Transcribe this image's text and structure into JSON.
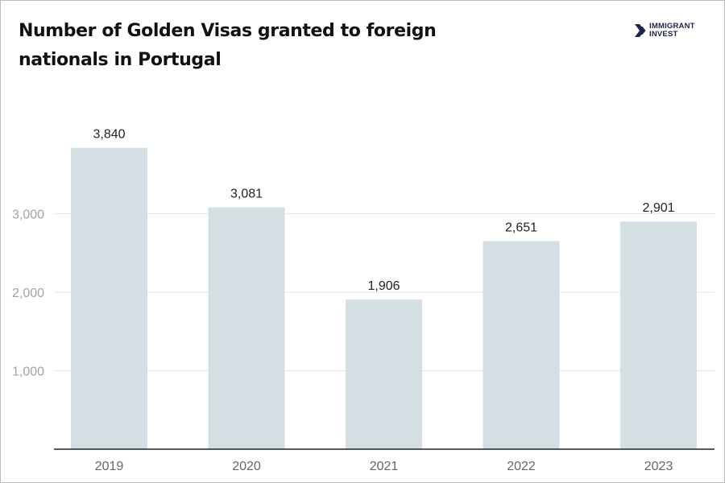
{
  "brand": {
    "line1": "IMMIGRANT",
    "line2": "INVEST",
    "color": "#1d2448",
    "icon": "chevron-arrows-icon"
  },
  "colors": {
    "bar": "#d4dfe3",
    "gridline": "#e4e4e4",
    "axis": "#222222"
  },
  "chart_data": {
    "type": "bar",
    "title": "Number of Golden Visas granted to foreign nationals in Portugal",
    "categories": [
      "2019",
      "2020",
      "2021",
      "2022",
      "2023"
    ],
    "values": [
      3840,
      3081,
      1906,
      2651,
      2901
    ],
    "value_labels": [
      "3,840",
      "3,081",
      "1,906",
      "2,651",
      "2,901"
    ],
    "ylim": [
      0,
      4000
    ],
    "yticks": [
      1000,
      2000,
      3000
    ],
    "ytick_labels": [
      "1,000",
      "2,000",
      "3,000"
    ],
    "grid": true,
    "legend": "none"
  }
}
